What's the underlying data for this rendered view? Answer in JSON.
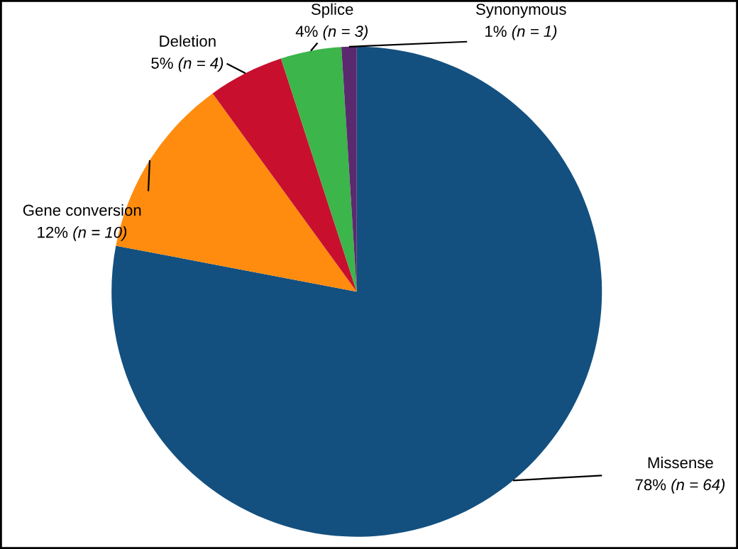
{
  "chart_data": {
    "type": "pie",
    "categories": [
      "Missense",
      "Gene conversion",
      "Deletion",
      "Splice",
      "Synonymous"
    ],
    "values": [
      78,
      12,
      5,
      4,
      1
    ],
    "colors": [
      "#13507f",
      "#ff8c0f",
      "#c8102e",
      "#3cb54a",
      "#5b2a6e"
    ],
    "value_labels": [
      "78% (n = 64)",
      "12% (n = 10)",
      "5% (n = 4)",
      "4% (n = 3)",
      "1% (n = 1)"
    ],
    "legend": false
  }
}
